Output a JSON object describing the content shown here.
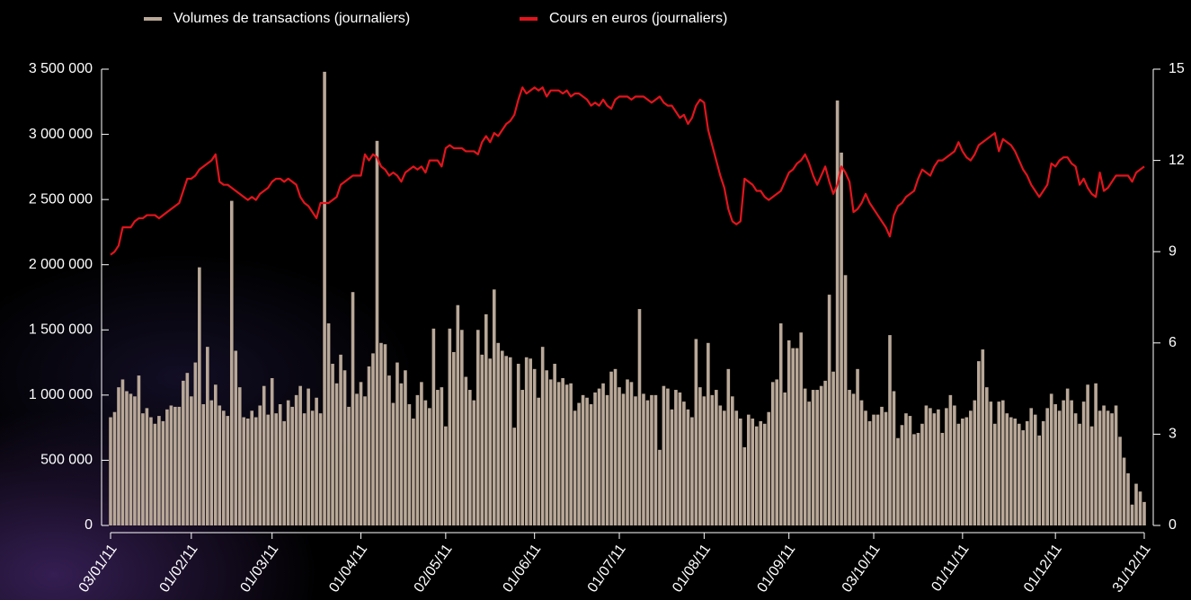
{
  "chart_data": {
    "type": "bar",
    "categories": [
      "03/01/11",
      null,
      null,
      null,
      null,
      null,
      null,
      null,
      null,
      null,
      null,
      null,
      null,
      null,
      null,
      null,
      null,
      null,
      null,
      null,
      "01/02/11",
      null,
      null,
      null,
      null,
      null,
      null,
      null,
      null,
      null,
      null,
      null,
      null,
      null,
      null,
      null,
      null,
      null,
      null,
      null,
      "01/03/11",
      null,
      null,
      null,
      null,
      null,
      null,
      null,
      null,
      null,
      null,
      null,
      null,
      null,
      null,
      null,
      null,
      null,
      null,
      null,
      null,
      null,
      "01/04/11",
      null,
      null,
      null,
      null,
      null,
      null,
      null,
      null,
      null,
      null,
      null,
      null,
      null,
      null,
      null,
      null,
      null,
      null,
      null,
      null,
      "02/05/11",
      null,
      null,
      null,
      null,
      null,
      null,
      null,
      null,
      null,
      null,
      null,
      null,
      null,
      null,
      null,
      null,
      null,
      null,
      null,
      null,
      null,
      "01/06/11",
      null,
      null,
      null,
      null,
      null,
      null,
      null,
      null,
      null,
      null,
      null,
      null,
      null,
      null,
      null,
      null,
      null,
      null,
      null,
      null,
      "01/07/11",
      null,
      null,
      null,
      null,
      null,
      null,
      null,
      null,
      null,
      null,
      null,
      null,
      null,
      null,
      null,
      null,
      null,
      null,
      null,
      null,
      "01/08/11",
      null,
      null,
      null,
      null,
      null,
      null,
      null,
      null,
      null,
      null,
      null,
      null,
      null,
      null,
      null,
      null,
      null,
      null,
      null,
      null,
      "01/09/11",
      null,
      null,
      null,
      null,
      null,
      null,
      null,
      null,
      null,
      null,
      null,
      null,
      null,
      null,
      null,
      null,
      null,
      null,
      null,
      null,
      "03/10/11",
      null,
      null,
      null,
      null,
      null,
      null,
      null,
      null,
      null,
      null,
      null,
      null,
      null,
      null,
      null,
      null,
      null,
      null,
      null,
      null,
      null,
      "01/11/11",
      null,
      null,
      null,
      null,
      null,
      null,
      null,
      null,
      null,
      null,
      null,
      null,
      null,
      null,
      null,
      null,
      null,
      null,
      null,
      null,
      null,
      null,
      "01/12/11",
      null,
      null,
      null,
      null,
      null,
      null,
      null,
      null,
      null,
      null,
      null,
      null,
      null,
      null,
      null,
      null,
      null,
      null,
      null,
      null,
      null,
      "31/12/11"
    ],
    "series": [
      {
        "name": "Volumes de transactions (journaliers)",
        "type": "bar",
        "color": "#b9a898",
        "values": [
          830000,
          870000,
          1060000,
          1120000,
          1030000,
          1010000,
          990000,
          1150000,
          860000,
          900000,
          830000,
          780000,
          840000,
          800000,
          890000,
          920000,
          910000,
          910000,
          1110000,
          1170000,
          990000,
          1250000,
          1980000,
          930000,
          1370000,
          960000,
          1080000,
          920000,
          880000,
          840000,
          2490000,
          1340000,
          1060000,
          830000,
          820000,
          880000,
          830000,
          920000,
          1070000,
          850000,
          1130000,
          860000,
          930000,
          800000,
          960000,
          910000,
          1000000,
          1070000,
          860000,
          1050000,
          880000,
          980000,
          860000,
          3480000,
          1550000,
          1240000,
          1090000,
          1310000,
          1190000,
          910000,
          1790000,
          1010000,
          1100000,
          990000,
          1220000,
          1320000,
          2950000,
          1400000,
          1390000,
          1150000,
          940000,
          1250000,
          1090000,
          1190000,
          930000,
          820000,
          1000000,
          1100000,
          960000,
          900000,
          1510000,
          1040000,
          1060000,
          760000,
          1510000,
          1330000,
          1690000,
          1500000,
          1140000,
          1040000,
          960000,
          1500000,
          1310000,
          1620000,
          1280000,
          1810000,
          1400000,
          1340000,
          1300000,
          1290000,
          750000,
          1240000,
          1040000,
          1290000,
          1280000,
          1200000,
          980000,
          1370000,
          1190000,
          1120000,
          1240000,
          1100000,
          1130000,
          1080000,
          1090000,
          880000,
          940000,
          1000000,
          980000,
          930000,
          1020000,
          1050000,
          1090000,
          1000000,
          1180000,
          1200000,
          1060000,
          1010000,
          1120000,
          1100000,
          990000,
          1660000,
          1010000,
          960000,
          1000000,
          1000000,
          580000,
          1070000,
          1050000,
          890000,
          1040000,
          1020000,
          950000,
          890000,
          830000,
          1430000,
          1060000,
          990000,
          1400000,
          1000000,
          1040000,
          920000,
          880000,
          1200000,
          990000,
          880000,
          820000,
          600000,
          850000,
          820000,
          760000,
          800000,
          780000,
          870000,
          1100000,
          1120000,
          1550000,
          1020000,
          1420000,
          1360000,
          1360000,
          1480000,
          1050000,
          950000,
          1040000,
          1040000,
          1070000,
          1110000,
          1770000,
          1180000,
          3260000,
          2860000,
          1920000,
          1040000,
          1010000,
          1200000,
          960000,
          880000,
          800000,
          850000,
          850000,
          910000,
          870000,
          1460000,
          1030000,
          670000,
          770000,
          860000,
          840000,
          700000,
          710000,
          780000,
          920000,
          900000,
          860000,
          890000,
          710000,
          900000,
          1000000,
          920000,
          780000,
          820000,
          830000,
          880000,
          960000,
          1260000,
          1350000,
          1060000,
          950000,
          780000,
          950000,
          960000,
          860000,
          830000,
          820000,
          780000,
          730000,
          800000,
          900000,
          850000,
          690000,
          800000,
          900000,
          1010000,
          930000,
          880000,
          960000,
          1050000,
          960000,
          860000,
          780000,
          950000,
          1080000,
          760000,
          1090000,
          880000,
          920000,
          880000,
          860000,
          920000,
          680000,
          520000,
          400000,
          160000,
          320000,
          260000,
          180000
        ]
      },
      {
        "name": "Cours en euros (journaliers)",
        "type": "line",
        "axis": "y2",
        "color": "#e3141c",
        "values": [
          8.9,
          9.0,
          9.2,
          9.8,
          9.8,
          9.8,
          10.0,
          10.1,
          10.1,
          10.2,
          10.2,
          10.2,
          10.1,
          10.2,
          10.3,
          10.4,
          10.5,
          10.6,
          11.0,
          11.4,
          11.4,
          11.5,
          11.7,
          11.8,
          11.9,
          12.0,
          12.2,
          11.3,
          11.2,
          11.2,
          11.1,
          11.0,
          10.9,
          10.8,
          10.7,
          10.8,
          10.7,
          10.9,
          11.0,
          11.1,
          11.3,
          11.4,
          11.4,
          11.3,
          11.4,
          11.3,
          11.2,
          10.8,
          10.6,
          10.5,
          10.3,
          10.1,
          10.6,
          10.6,
          10.6,
          10.7,
          10.8,
          11.2,
          11.3,
          11.4,
          11.5,
          11.5,
          11.5,
          12.2,
          12.0,
          12.2,
          12.1,
          11.8,
          11.7,
          11.5,
          11.6,
          11.5,
          11.3,
          11.6,
          11.7,
          11.8,
          11.7,
          11.8,
          11.6,
          12.0,
          12.0,
          12.0,
          11.8,
          12.4,
          12.5,
          12.4,
          12.4,
          12.4,
          12.3,
          12.3,
          12.3,
          12.2,
          12.6,
          12.8,
          12.6,
          12.9,
          12.8,
          13.0,
          13.2,
          13.3,
          13.5,
          14.0,
          14.4,
          14.2,
          14.3,
          14.4,
          14.3,
          14.4,
          14.1,
          14.3,
          14.3,
          14.3,
          14.2,
          14.3,
          14.1,
          14.2,
          14.2,
          14.1,
          14.0,
          13.8,
          13.9,
          13.8,
          14.0,
          13.8,
          13.7,
          14.0,
          14.1,
          14.1,
          14.1,
          14.0,
          14.1,
          14.1,
          14.1,
          14.0,
          13.9,
          14.0,
          14.1,
          13.9,
          13.8,
          13.8,
          13.6,
          13.4,
          13.5,
          13.2,
          13.4,
          13.8,
          14.0,
          13.9,
          13.0,
          12.5,
          12.0,
          11.5,
          11.1,
          10.4,
          10.0,
          9.9,
          10.0,
          11.4,
          11.3,
          11.2,
          11.0,
          11.0,
          10.8,
          10.7,
          10.8,
          10.9,
          11.0,
          11.3,
          11.6,
          11.7,
          11.9,
          12.0,
          12.2,
          11.9,
          11.5,
          11.2,
          11.5,
          11.8,
          11.3,
          10.9,
          11.2,
          11.8,
          11.6,
          11.3,
          10.3,
          10.4,
          10.6,
          10.9,
          10.6,
          10.4,
          10.2,
          10.0,
          9.8,
          9.5,
          10.2,
          10.5,
          10.6,
          10.8,
          10.9,
          11.0,
          11.4,
          11.7,
          11.6,
          11.5,
          11.8,
          12.0,
          12.0,
          12.1,
          12.2,
          12.3,
          12.6,
          12.3,
          12.1,
          12.0,
          12.2,
          12.5,
          12.6,
          12.7,
          12.8,
          12.9,
          12.3,
          12.7,
          12.6,
          12.5,
          12.3,
          12.0,
          11.7,
          11.5,
          11.2,
          11.0,
          10.8,
          11.0,
          11.2,
          11.9,
          11.8,
          12.0,
          12.1,
          12.1,
          11.9,
          11.8,
          11.2,
          11.4,
          11.1,
          10.9,
          10.8,
          11.6,
          11.0,
          11.1,
          11.3,
          11.5,
          11.5,
          11.5,
          11.5,
          11.3,
          11.6,
          11.7,
          11.8
        ]
      }
    ],
    "ylim": [
      0,
      3500000
    ],
    "yticks": [
      0,
      {
        "value": 500000,
        "label": "500 000"
      },
      {
        "value": 1000000,
        "label": "1 000 000"
      },
      {
        "value": 1500000,
        "label": "1 500 000"
      },
      {
        "value": 2000000,
        "label": "2 000 000"
      },
      {
        "value": 2500000,
        "label": "2 500 000"
      },
      {
        "value": 3000000,
        "label": "3 000 000"
      },
      {
        "value": 3500000,
        "label": "3 500 000"
      }
    ],
    "y2lim": [
      0,
      15
    ],
    "y2ticks": [
      0,
      3,
      6,
      9,
      12,
      15
    ],
    "legend": "top"
  }
}
